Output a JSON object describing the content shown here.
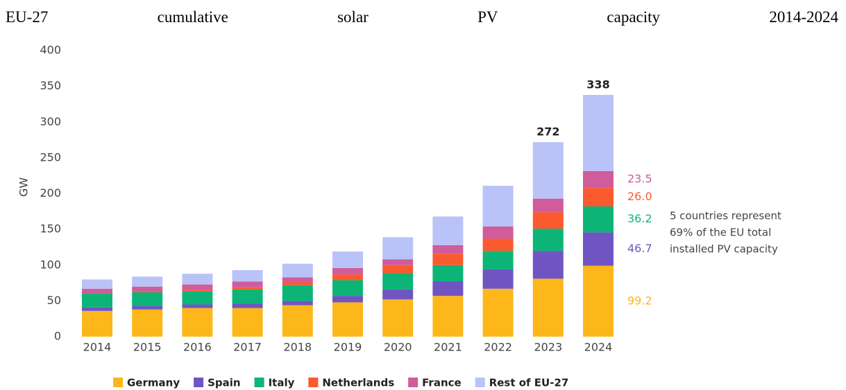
{
  "chart_data": {
    "type": "stacked-bar",
    "title": "EU-27 cumulative solar PV capacity 2014-2024",
    "y_label": "GW",
    "categories": [
      "2014",
      "2015",
      "2016",
      "2017",
      "2018",
      "2019",
      "2020",
      "2021",
      "2022",
      "2023",
      "2024"
    ],
    "series": [
      {
        "name": "Germany",
        "color": "#fdb71a",
        "values": [
          36,
          38,
          40,
          40,
          44,
          48,
          52,
          57,
          67,
          81,
          99.2
        ]
      },
      {
        "name": "Spain",
        "color": "#7055c2",
        "values": [
          5,
          5,
          5,
          6,
          6,
          9,
          14,
          20,
          27,
          39,
          46.7
        ]
      },
      {
        "name": "Italy",
        "color": "#0cb577",
        "values": [
          19,
          19,
          18,
          20,
          22,
          22,
          23,
          23,
          26,
          31,
          36.2
        ]
      },
      {
        "name": "Netherlands",
        "color": "#fb5a2e",
        "values": [
          1,
          1.5,
          2,
          3,
          4,
          8,
          11,
          16,
          17,
          23,
          26.0
        ],
        "value_labels": [
          null,
          null,
          null,
          null,
          null,
          null,
          null,
          null,
          null,
          null,
          "26.0"
        ]
      },
      {
        "name": "France",
        "color": "#d05c9c",
        "values": [
          6,
          6.5,
          8,
          8,
          7,
          9,
          8,
          12,
          17,
          19,
          23.5
        ]
      },
      {
        "name": "Rest of EU-27",
        "color": "#b9c3f8",
        "values": [
          13,
          14,
          15,
          16,
          19,
          23,
          31,
          40,
          57,
          79,
          106.4
        ]
      }
    ],
    "labeled_series": [
      0,
      1,
      2,
      3,
      4
    ],
    "totals": [
      null,
      null,
      null,
      null,
      null,
      null,
      null,
      null,
      null,
      272,
      338
    ],
    "annotation": [
      "5 countries represent",
      "69% of the EU total",
      "installed PV capacity"
    ],
    "ylim": [
      0,
      400
    ],
    "yticks": [
      0,
      50,
      100,
      150,
      200,
      250,
      300,
      350,
      400
    ],
    "grid": false
  }
}
